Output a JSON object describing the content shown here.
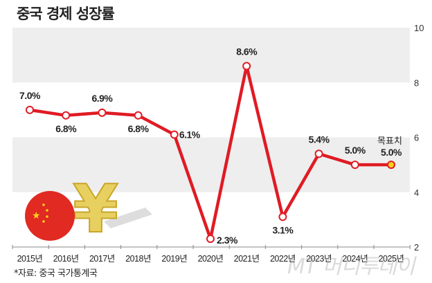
{
  "chart_data": {
    "type": "line",
    "title": "중국 경제 성장률",
    "categories": [
      "2015년",
      "2016년",
      "2017년",
      "2018년",
      "2019년",
      "2020년",
      "2021년",
      "2022년",
      "2023년",
      "2024년",
      "2025년"
    ],
    "series": [
      {
        "values": [
          7.0,
          6.8,
          6.9,
          6.8,
          6.1,
          2.3,
          8.6,
          3.1,
          5.4,
          5.0,
          5.0
        ]
      }
    ],
    "data_labels": [
      "7.0%",
      "6.8%",
      "6.9%",
      "6.8%",
      "6.1%",
      "2.3%",
      "8.6%",
      "3.1%",
      "5.4%",
      "5.0%",
      "5.0%"
    ],
    "annotation": "목표치",
    "ylim": [
      2,
      10
    ],
    "yticks": [
      10,
      8,
      6,
      4,
      2
    ],
    "y_axis_side": "right",
    "grid": "alternating bands",
    "colors": {
      "line": "#e01b24",
      "band": "#eeeeee",
      "marker_fill": "#ffffff",
      "target_marker": "#f5d21a"
    }
  },
  "source": "*자료: 중국 국가통계국",
  "watermark": "MT 머니투데이"
}
